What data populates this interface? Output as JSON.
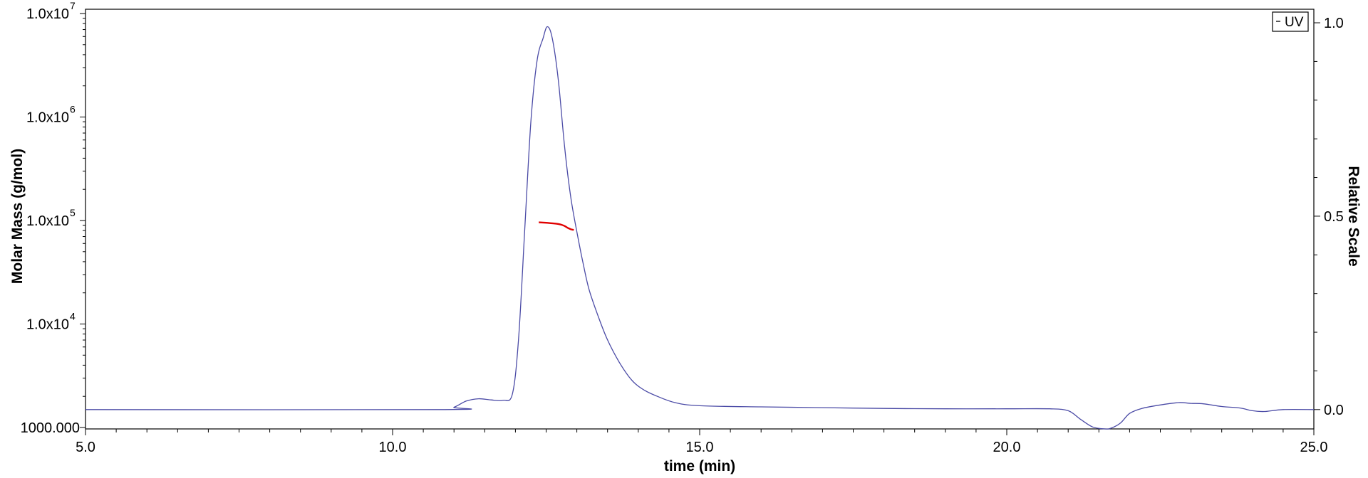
{
  "chart_data": {
    "type": "line",
    "xlabel": "time (min)",
    "ylabel_left": "Molar Mass (g/mol)",
    "ylabel_right": "Relative Scale",
    "xlim": [
      5.0,
      25.0
    ],
    "x_ticks": [
      "5.0",
      "10.0",
      "15.0",
      "20.0",
      "25.0"
    ],
    "y_left_scale": "log",
    "y_left_lim": [
      1000,
      10000000
    ],
    "y_left_ticks": [
      {
        "value": 1000,
        "label": "1000.000",
        "exp": ""
      },
      {
        "value": 10000,
        "label": "1.0x10",
        "exp": "4"
      },
      {
        "value": 100000,
        "label": "1.0x10",
        "exp": "5"
      },
      {
        "value": 1000000,
        "label": "1.0x10",
        "exp": "6"
      },
      {
        "value": 10000000,
        "label": "1.0x10",
        "exp": "7"
      }
    ],
    "y_right_lim": [
      -0.05,
      1.035
    ],
    "y_right_ticks": [
      "0.0",
      "0.5",
      "1.0"
    ],
    "legend": {
      "entries": [
        "UV"
      ],
      "placement": "top-right"
    },
    "grid": false,
    "series": [
      {
        "name": "UV",
        "axis": "right",
        "color": "#4b4ba6",
        "x": [
          5.0,
          10.8,
          11.0,
          11.2,
          11.4,
          11.6,
          11.8,
          11.95,
          12.05,
          12.15,
          12.25,
          12.35,
          12.45,
          12.52,
          12.6,
          12.7,
          12.8,
          12.9,
          13.0,
          13.1,
          13.2,
          13.35,
          13.5,
          13.7,
          13.9,
          14.1,
          14.3,
          14.6,
          15.0,
          16.0,
          17.0,
          18.0,
          19.0,
          20.0,
          20.7,
          21.0,
          21.2,
          21.4,
          21.6,
          21.7,
          21.85,
          22.0,
          22.2,
          22.5,
          22.8,
          23.0,
          23.2,
          23.5,
          23.8,
          24.0,
          24.2,
          24.5,
          25.0
        ],
        "y": [
          0.0,
          0.0,
          0.006,
          0.022,
          0.028,
          0.025,
          0.024,
          0.04,
          0.18,
          0.46,
          0.74,
          0.9,
          0.96,
          0.99,
          0.96,
          0.85,
          0.68,
          0.55,
          0.46,
          0.38,
          0.31,
          0.24,
          0.18,
          0.12,
          0.075,
          0.05,
          0.035,
          0.018,
          0.01,
          0.007,
          0.005,
          0.003,
          0.002,
          0.002,
          0.002,
          -0.003,
          -0.025,
          -0.045,
          -0.05,
          -0.048,
          -0.035,
          -0.01,
          0.003,
          0.012,
          0.018,
          0.016,
          0.015,
          0.008,
          0.004,
          -0.003,
          -0.005,
          0.0,
          0.0
        ]
      },
      {
        "name": "Molar Mass",
        "axis": "left",
        "color": "#e00000",
        "x": [
          12.38,
          12.5,
          12.6,
          12.7,
          12.75,
          12.8,
          12.85,
          12.9,
          12.95
        ],
        "y": [
          96000,
          95000,
          94000,
          92500,
          91000,
          88500,
          85000,
          82500,
          81000
        ]
      }
    ]
  }
}
